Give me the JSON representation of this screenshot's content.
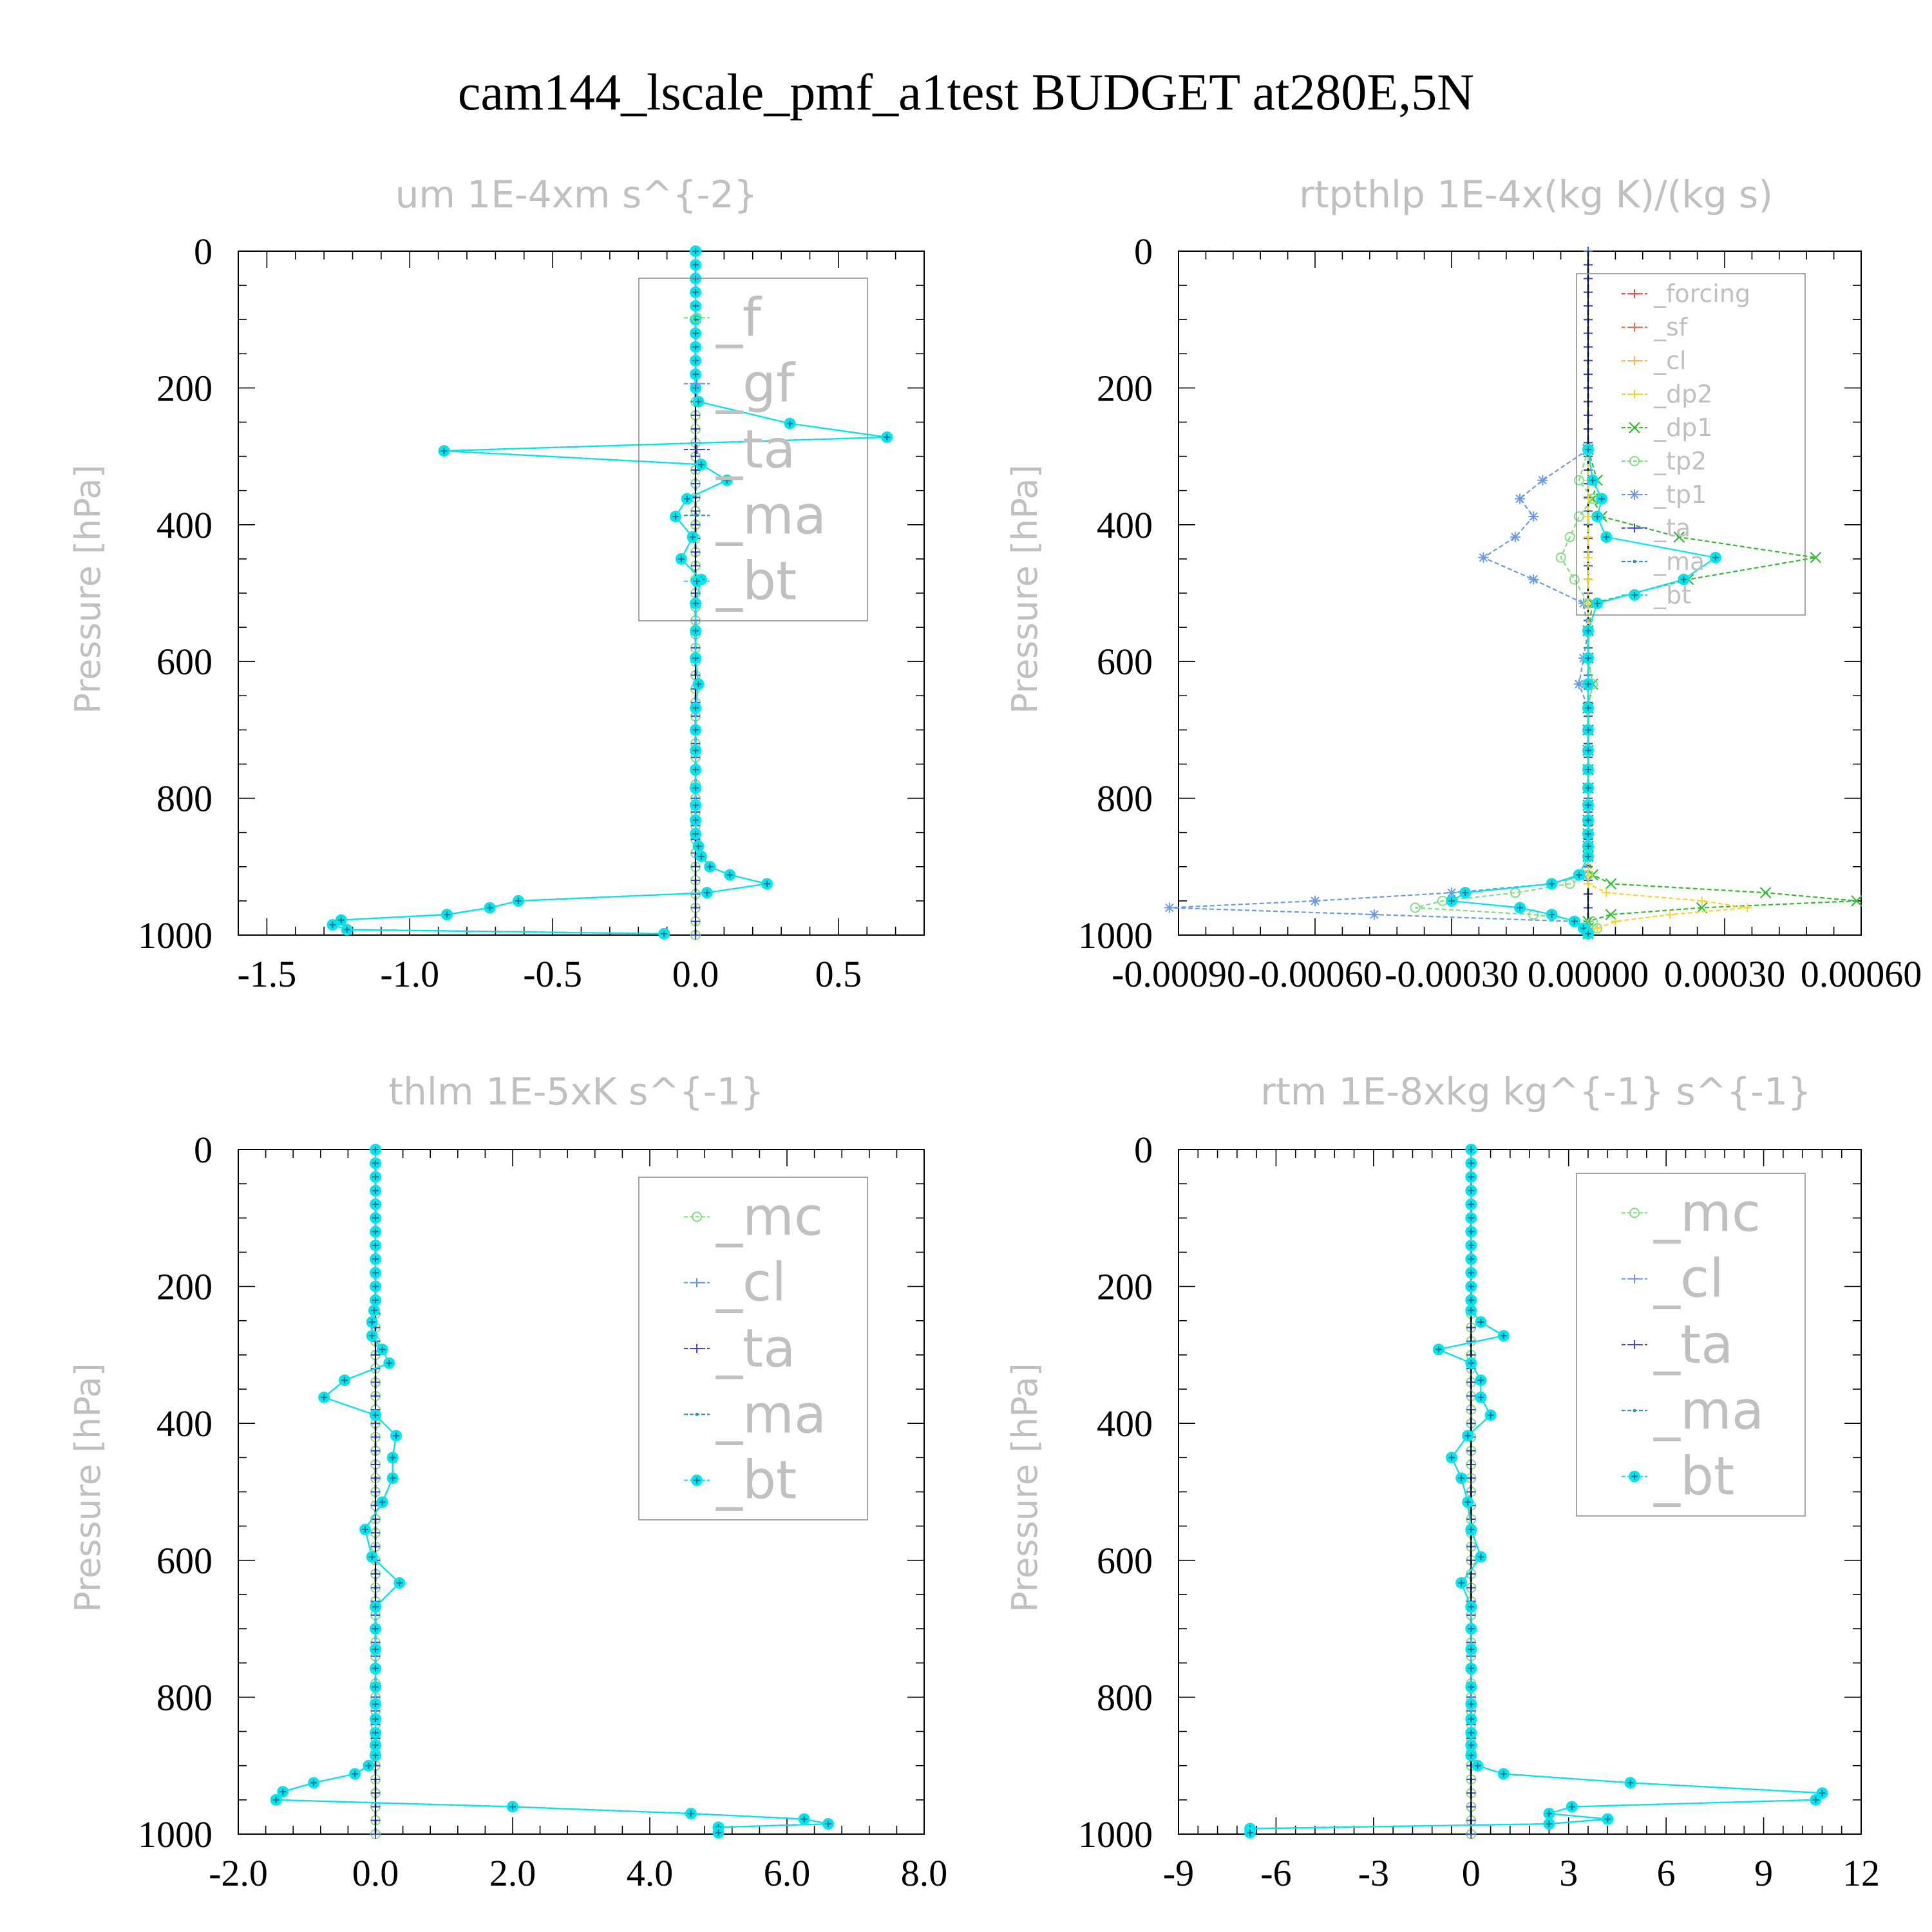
{
  "title": "cam144_lscale_pmf_a1test  BUDGET at280E,5N",
  "colors": {
    "f": "#7fe07f",
    "gf": "#6a9ae6",
    "ta": "#4444e0",
    "ma": "#2a8ab8",
    "bt": "#00e5ee",
    "mc": "#7fe07f",
    "cl": "#6a9ae6",
    "forcing": "#e04a4a",
    "sf": "#ff6a4a",
    "cl_orange": "#ffb040",
    "dp2": "#ffd030",
    "dp1": "#33bb33",
    "tp2": "#7fe07f",
    "tp1": "#6a9ae6"
  },
  "chart_data": [
    {
      "type": "line",
      "title": "um  1E-4xm s^{-2}",
      "ylabel": "Pressure [hPa]",
      "ylim": [
        1000,
        0
      ],
      "xlim": [
        -1.6,
        0.8
      ],
      "xticks": [
        -1.5,
        -1.0,
        -0.5,
        0.0,
        0.5
      ],
      "xticklabels": [
        "-1.5",
        "-1.0",
        "-0.5",
        "0.0",
        "0.5"
      ],
      "yticks": [
        0,
        200,
        400,
        600,
        800,
        1000
      ],
      "legend": [
        "_f",
        "_gf",
        "_ta",
        "_ma",
        "_bt"
      ],
      "legend_location": "upper right",
      "pressure": [
        0,
        20,
        40,
        60,
        80,
        100,
        120,
        140,
        160,
        180,
        200,
        220,
        252,
        272,
        292,
        312,
        335,
        362,
        388,
        418,
        450,
        480,
        515,
        555,
        595,
        633,
        668,
        700,
        730,
        758,
        785,
        810,
        832,
        852,
        870,
        885,
        900,
        912,
        925,
        938,
        950,
        960,
        970,
        978,
        985,
        992,
        998
      ],
      "series": [
        {
          "name": "_ma",
          "values": [
            0,
            0,
            0,
            0,
            0,
            0,
            0,
            0,
            0,
            0,
            0,
            0.01,
            0.33,
            0.67,
            -0.88,
            0.02,
            0.11,
            -0.03,
            -0.07,
            -0.01,
            -0.05,
            0.02,
            0,
            0,
            0,
            0.01,
            0,
            0,
            0,
            0,
            0,
            0,
            0,
            0,
            0.01,
            0.02,
            0.05,
            0.12,
            0.25,
            0.04,
            -0.62,
            -0.72,
            -0.87,
            -1.24,
            -1.27,
            -1.22,
            -0.11
          ]
        },
        {
          "name": "_bt",
          "values": [
            0,
            0,
            0,
            0,
            0,
            0,
            0,
            0,
            0,
            0,
            0,
            0.01,
            0.33,
            0.67,
            -0.88,
            0.02,
            0.11,
            -0.03,
            -0.07,
            -0.01,
            -0.05,
            0.02,
            0,
            0,
            0,
            0.01,
            0,
            0,
            0,
            0,
            0,
            0,
            0,
            0,
            0.01,
            0.02,
            0.05,
            0.12,
            0.25,
            0.04,
            -0.62,
            -0.72,
            -0.87,
            -1.24,
            -1.27,
            -1.22,
            -0.11
          ]
        }
      ]
    },
    {
      "type": "line",
      "title": "rtpthlp  1E-4x(kg K)/(kg s)",
      "ylabel": "Pressure [hPa]",
      "ylim": [
        1000,
        0
      ],
      "xlim": [
        -0.0009,
        0.0006
      ],
      "xticks": [
        -0.0009,
        -0.0006,
        -0.0003,
        0.0,
        0.0003,
        0.0006
      ],
      "xticklabels": [
        "-0.00090",
        "-0.00060",
        "-0.00030",
        "0.00000",
        "0.00030",
        "0.00060"
      ],
      "yticks": [
        0,
        200,
        400,
        600,
        800,
        1000
      ],
      "legend": [
        "_forcing",
        "_sf",
        "_cl",
        "_dp2",
        "_dp1",
        "_tp2",
        "_tp1",
        "_ta",
        "_ma",
        "_bt"
      ],
      "legend_location": "upper right",
      "pressure": [
        290,
        335,
        362,
        388,
        418,
        448,
        480,
        515,
        555,
        595,
        633,
        668,
        700,
        730,
        758,
        785,
        810,
        832,
        852,
        870,
        885,
        912,
        925,
        938,
        950,
        960,
        970,
        980,
        990,
        998
      ],
      "series": [
        {
          "name": "_dp1",
          "values": [
            0,
            2e-05,
            1e-05,
            3e-05,
            0.0002,
            0.0005,
            0.00022,
            1e-05,
            0,
            0,
            1e-05,
            0,
            0,
            0,
            0,
            0,
            0,
            0,
            0,
            0,
            0,
            1e-05,
            5e-05,
            0.00039,
            0.00059,
            0.00025,
            5e-05,
            0,
            0,
            0
          ]
        },
        {
          "name": "_tp1",
          "values": [
            0,
            -0.0001,
            -0.00015,
            -0.00012,
            -0.00016,
            -0.00023,
            -0.00012,
            -1e-05,
            0,
            -1e-05,
            -2e-05,
            0,
            0,
            0,
            0,
            0,
            0,
            0,
            0,
            0,
            0,
            -1e-05,
            -8e-05,
            -0.0003,
            -0.0006,
            -0.00092,
            -0.00047,
            -3e-05,
            0,
            0
          ]
        },
        {
          "name": "_tp2",
          "values": [
            0,
            -2e-05,
            1e-05,
            -2e-05,
            -4e-05,
            -6e-05,
            -3e-05,
            0,
            0,
            0,
            1e-05,
            0,
            0,
            0,
            0,
            0,
            0,
            0,
            0,
            0,
            0,
            0,
            -4e-05,
            -0.00016,
            -0.00032,
            -0.00038,
            -0.00012,
            1e-05,
            2e-05,
            0
          ]
        },
        {
          "name": "_dp2",
          "values": [
            0,
            0,
            0,
            0,
            0,
            0,
            0,
            0,
            0,
            0,
            0,
            0,
            0,
            0,
            0,
            0,
            0,
            0,
            0,
            0,
            0,
            0,
            0,
            4e-05,
            0.00025,
            0.00035,
            0.00018,
            6e-05,
            2e-05,
            0
          ]
        },
        {
          "name": "_bt",
          "values": [
            0,
            1e-05,
            3e-05,
            2e-05,
            4e-05,
            0.00028,
            0.00021,
            2e-05,
            0,
            0,
            0,
            0,
            0,
            0,
            0,
            0,
            0,
            0,
            0,
            0,
            0,
            -2e-05,
            -8e-05,
            -0.00027,
            -0.0003,
            -0.00015,
            -8e-05,
            -3e-05,
            -1e-05,
            0
          ]
        }
      ]
    },
    {
      "type": "line",
      "title": "thlm  1E-5xK s^{-1}",
      "ylabel": "Pressure [hPa]",
      "ylim": [
        1000,
        0
      ],
      "xlim": [
        -2.0,
        8.0
      ],
      "xticks": [
        -2.0,
        0.0,
        2.0,
        4.0,
        6.0,
        8.0
      ],
      "xticklabels": [
        "-2.0",
        "0.0",
        "2.0",
        "4.0",
        "6.0",
        "8.0"
      ],
      "yticks": [
        0,
        200,
        400,
        600,
        800,
        1000
      ],
      "legend": [
        "_mc",
        "_cl",
        "_ta",
        "_ma",
        "_bt"
      ],
      "legend_location": "upper right",
      "pressure": [
        0,
        20,
        40,
        60,
        80,
        100,
        120,
        140,
        160,
        180,
        200,
        220,
        235,
        252,
        272,
        292,
        312,
        337,
        362,
        388,
        418,
        450,
        480,
        515,
        555,
        595,
        633,
        668,
        700,
        730,
        758,
        785,
        810,
        832,
        852,
        870,
        885,
        900,
        912,
        925,
        938,
        950,
        960,
        970,
        978,
        985,
        990,
        998
      ],
      "series": [
        {
          "name": "_ma",
          "values": [
            0,
            0,
            0,
            0,
            0,
            0,
            0,
            0,
            0,
            0,
            0,
            0,
            -0.02,
            -0.05,
            -0.05,
            0.1,
            0.2,
            -0.45,
            -0.75,
            0,
            0.3,
            0.25,
            0.25,
            0.1,
            -0.15,
            -0.05,
            0.35,
            0,
            0,
            0,
            0,
            0,
            0,
            0,
            0,
            0,
            0,
            -0.1,
            -0.3,
            -0.9,
            -1.35,
            -1.45,
            2.0,
            4.6,
            6.25,
            6.6,
            5.0,
            5.0
          ]
        },
        {
          "name": "_bt",
          "values": [
            0,
            0,
            0,
            0,
            0,
            0,
            0,
            0,
            0,
            0,
            0,
            0,
            -0.02,
            -0.05,
            -0.05,
            0.1,
            0.2,
            -0.45,
            -0.75,
            0,
            0.3,
            0.25,
            0.25,
            0.1,
            -0.15,
            -0.05,
            0.35,
            0,
            0,
            0,
            0,
            0,
            0,
            0,
            0,
            0,
            0,
            -0.1,
            -0.3,
            -0.9,
            -1.35,
            -1.45,
            2.0,
            4.6,
            6.25,
            6.6,
            5.0,
            5.0
          ]
        }
      ]
    },
    {
      "type": "line",
      "title": "rtm  1E-8xkg kg^{-1} s^{-1}",
      "ylabel": "Pressure [hPa]",
      "ylim": [
        1000,
        0
      ],
      "xlim": [
        -9,
        12
      ],
      "xticks": [
        -9,
        -6,
        -3,
        0,
        3,
        6,
        9,
        12
      ],
      "xticklabels": [
        "-9",
        "-6",
        "-3",
        "0",
        "3",
        "6",
        "9",
        "12"
      ],
      "yticks": [
        0,
        200,
        400,
        600,
        800,
        1000
      ],
      "legend": [
        "_mc",
        "_cl",
        "_ta",
        "_ma",
        "_bt"
      ],
      "legend_location": "upper right",
      "pressure": [
        0,
        20,
        40,
        60,
        80,
        100,
        120,
        140,
        160,
        180,
        200,
        220,
        235,
        252,
        272,
        292,
        312,
        337,
        362,
        388,
        418,
        450,
        480,
        515,
        555,
        595,
        633,
        668,
        700,
        730,
        758,
        785,
        810,
        832,
        852,
        870,
        885,
        900,
        912,
        925,
        940,
        950,
        960,
        970,
        978,
        985,
        992,
        998
      ],
      "series": [
        {
          "name": "_ma",
          "values": [
            0,
            0,
            0,
            0,
            0,
            0,
            0,
            0,
            0,
            0,
            0,
            0,
            0,
            0.3,
            1.0,
            -1.0,
            0,
            0.3,
            0.3,
            0.6,
            -0.1,
            -0.6,
            -0.3,
            -0.1,
            0,
            0.3,
            -0.3,
            0,
            0,
            0,
            0,
            0,
            0,
            0,
            0,
            0,
            0,
            0.2,
            1.0,
            4.9,
            10.8,
            10.6,
            3.1,
            2.4,
            4.2,
            2.4,
            -6.8,
            -6.8
          ]
        },
        {
          "name": "_bt",
          "values": [
            0,
            0,
            0,
            0,
            0,
            0,
            0,
            0,
            0,
            0,
            0,
            0,
            0,
            0.3,
            1.0,
            -1.0,
            0,
            0.3,
            0.3,
            0.6,
            -0.1,
            -0.6,
            -0.3,
            -0.1,
            0,
            0.3,
            -0.3,
            0,
            0,
            0,
            0,
            0,
            0,
            0,
            0,
            0,
            0,
            0.2,
            1.0,
            4.9,
            10.8,
            10.6,
            3.1,
            2.4,
            4.2,
            2.4,
            -6.8,
            -6.8
          ]
        }
      ]
    }
  ]
}
